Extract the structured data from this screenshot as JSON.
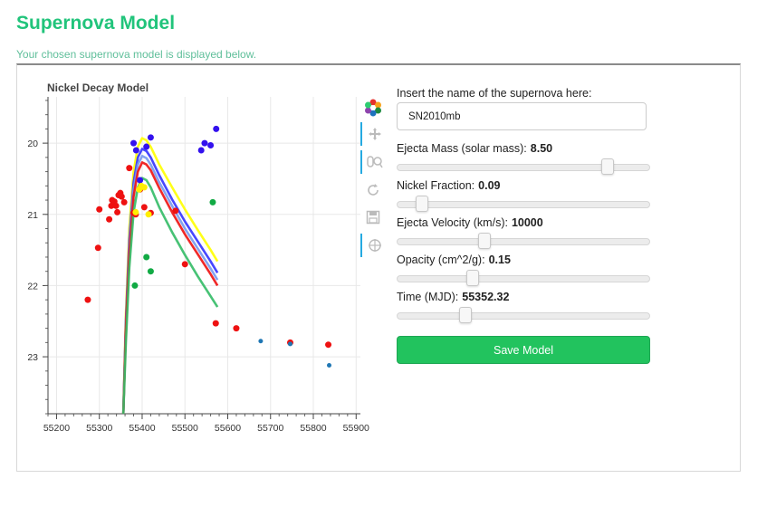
{
  "header": {
    "title": "Supernova Model",
    "subtitle": "Your chosen supernova model is displayed below."
  },
  "chart_title": "Nickel Decay Model",
  "toolbar": {
    "tools": [
      "bokeh-logo-icon",
      "pan-icon",
      "wheel-zoom-icon",
      "reset-icon",
      "save-icon",
      "crosshair-icon"
    ]
  },
  "controls": {
    "name_label": "Insert the name of the supernova here:",
    "name_value": "SN2010mb",
    "sliders": [
      {
        "label": "Ejecta Mass (solar mass):",
        "value": "8.50",
        "fraction": 0.85
      },
      {
        "label": "Nickel Fraction:",
        "value": "0.09",
        "fraction": 0.08
      },
      {
        "label": "Ejecta Velocity (km/s):",
        "value": "10000",
        "fraction": 0.34
      },
      {
        "label": "Opacity (cm^2/g):",
        "value": "0.15",
        "fraction": 0.29
      },
      {
        "label": "Time (MJD):",
        "value": "55352.32",
        "fraction": 0.26
      }
    ],
    "save_label": "Save Model"
  },
  "colors": {
    "title": "#21c47b",
    "button": "#22c35e",
    "yellow": "#ffff00",
    "blue": "#3333ff",
    "purple": "#7766ff",
    "red": "#ee1111",
    "green": "#11aa44",
    "teal": "#1f77b4"
  },
  "chart_data": {
    "type": "scatter",
    "title": "Nickel Decay Model",
    "xlabel": "",
    "ylabel": "",
    "xlim": [
      55180,
      55910
    ],
    "ylim": [
      23.8,
      19.35
    ],
    "y_inverted": true,
    "x_ticks": [
      55200,
      55300,
      55400,
      55500,
      55600,
      55700,
      55800,
      55900
    ],
    "y_ticks": [
      20,
      21,
      22,
      23
    ],
    "grid": true,
    "series": [
      {
        "color": "#ffff00",
        "kind": "line",
        "x": [
          55356,
          55362,
          55370,
          55380,
          55390,
          55400,
          55410,
          55420,
          55440,
          55470,
          55500,
          55530,
          55560,
          55576
        ],
        "y": [
          23.8,
          22.4,
          21.2,
          20.4,
          20.05,
          19.93,
          19.96,
          20.05,
          20.3,
          20.62,
          20.93,
          21.22,
          21.5,
          21.66
        ]
      },
      {
        "color": "#3333ff",
        "kind": "line",
        "x": [
          55356,
          55362,
          55370,
          55380,
          55390,
          55400,
          55410,
          55420,
          55440,
          55470,
          55500,
          55530,
          55560,
          55576
        ],
        "y": [
          23.8,
          22.5,
          21.35,
          20.55,
          20.2,
          20.08,
          20.11,
          20.2,
          20.45,
          20.79,
          21.1,
          21.38,
          21.66,
          21.82
        ]
      },
      {
        "color": "#7799ee",
        "kind": "line",
        "x": [
          55356,
          55362,
          55370,
          55380,
          55390,
          55400,
          55410,
          55420,
          55440,
          55470,
          55500,
          55530,
          55560,
          55576
        ],
        "y": [
          23.8,
          22.55,
          21.45,
          20.65,
          20.3,
          20.18,
          20.21,
          20.3,
          20.55,
          20.88,
          21.2,
          21.48,
          21.76,
          21.92
        ]
      },
      {
        "color": "#ee1111",
        "kind": "line",
        "x": [
          55356,
          55362,
          55370,
          55380,
          55390,
          55400,
          55410,
          55420,
          55440,
          55470,
          55500,
          55530,
          55560,
          55576
        ],
        "y": [
          23.8,
          22.6,
          21.55,
          20.75,
          20.4,
          20.27,
          20.3,
          20.38,
          20.63,
          20.97,
          21.28,
          21.56,
          21.84,
          22.0
        ]
      },
      {
        "color": "#33bb66",
        "kind": "line",
        "x": [
          55356,
          55362,
          55370,
          55380,
          55390,
          55400,
          55410,
          55420,
          55440,
          55470,
          55500,
          55530,
          55560,
          55576
        ],
        "y": [
          23.8,
          22.8,
          21.75,
          20.97,
          20.62,
          20.49,
          20.52,
          20.62,
          20.9,
          21.25,
          21.57,
          21.87,
          22.15,
          22.3
        ]
      },
      {
        "color": "#ee1111",
        "kind": "points",
        "x": [
          55273,
          55297,
          55300,
          55323,
          55328,
          55330,
          55335,
          55339,
          55342,
          55345,
          55349,
          55352,
          55358,
          55370,
          55380,
          55385,
          55395,
          55405,
          55420,
          55478,
          55500,
          55572,
          55620,
          55746,
          55835
        ],
        "y": [
          22.2,
          21.47,
          20.93,
          21.07,
          20.88,
          20.8,
          20.82,
          20.88,
          20.97,
          20.73,
          20.7,
          20.75,
          20.83,
          20.35,
          20.98,
          21.0,
          20.65,
          20.9,
          20.98,
          20.95,
          21.7,
          22.53,
          22.6,
          22.8,
          22.83
        ]
      },
      {
        "color": "#3311ee",
        "kind": "points",
        "x": [
          55380,
          55386,
          55395,
          55410,
          55420,
          55538,
          55546,
          55560,
          55573
        ],
        "y": [
          20.0,
          20.1,
          20.52,
          20.05,
          19.92,
          20.1,
          20.0,
          20.03,
          19.8
        ]
      },
      {
        "color": "#ffee00",
        "kind": "points",
        "x": [
          55393,
          55398,
          55405,
          55415,
          55385
        ],
        "y": [
          20.65,
          20.6,
          20.62,
          21.0,
          20.97
        ]
      },
      {
        "color": "#11aa44",
        "kind": "points",
        "x": [
          55383,
          55410,
          55420,
          55565
        ],
        "y": [
          22.0,
          21.6,
          21.8,
          20.83
        ]
      },
      {
        "color": "#1f77b4",
        "kind": "small-points",
        "x": [
          55677,
          55746,
          55837
        ],
        "y": [
          22.78,
          22.82,
          23.12
        ]
      }
    ]
  }
}
